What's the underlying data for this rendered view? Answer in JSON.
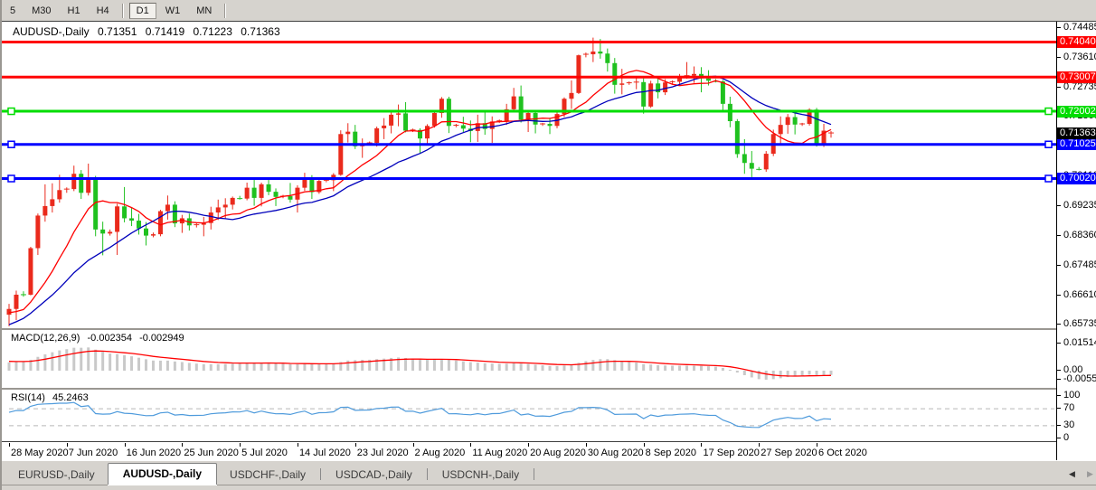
{
  "toolbar": {
    "buttons": [
      {
        "label": "5",
        "active": false
      },
      {
        "label": "M30",
        "active": false
      },
      {
        "label": "H1",
        "active": false
      },
      {
        "label": "H4",
        "active": false
      },
      {
        "label": "D1",
        "active": true
      },
      {
        "label": "W1",
        "active": false
      },
      {
        "label": "MN",
        "active": false
      }
    ]
  },
  "chart": {
    "title": {
      "symbol": "AUDUSD-,Daily",
      "open": "0.71351",
      "high": "0.71419",
      "low": "0.71223",
      "close": "0.71363"
    },
    "price_axis": {
      "ticks": [
        {
          "label": "0.74485",
          "price": 0.74485
        },
        {
          "label": "0.73610",
          "price": 0.7361
        },
        {
          "label": "0.72735",
          "price": 0.72735
        },
        {
          "label": "0.71860",
          "price": 0.7186
        },
        {
          "label": "0.70985",
          "price": 0.70985
        },
        {
          "label": "0.70110",
          "price": 0.7011
        },
        {
          "label": "0.69235",
          "price": 0.69235
        },
        {
          "label": "0.68360",
          "price": 0.6836
        },
        {
          "label": "0.67485",
          "price": 0.67485
        },
        {
          "label": "0.66610",
          "price": 0.6661
        },
        {
          "label": "0.65735",
          "price": 0.65735
        }
      ],
      "badges": [
        {
          "label": "0.74040",
          "price": 0.7404,
          "color": "#ff0000"
        },
        {
          "label": "0.73007",
          "price": 0.73007,
          "color": "#ff0000"
        },
        {
          "label": "0.72002",
          "price": 0.72002,
          "color": "#00dd00"
        },
        {
          "label": "0.71025",
          "price": 0.71025,
          "color": "#0000ff"
        },
        {
          "label": "0.70020",
          "price": 0.7002,
          "color": "#0000ff"
        },
        {
          "label": "0.71363",
          "price": 0.71363,
          "color": "#000000"
        }
      ]
    },
    "hlines": [
      {
        "price": 0.7404,
        "color": "#ff0000",
        "selected": false
      },
      {
        "price": 0.73007,
        "color": "#ff0000",
        "selected": false
      },
      {
        "price": 0.72002,
        "color": "#00dd00",
        "selected": true
      },
      {
        "price": 0.71025,
        "color": "#0000ff",
        "selected": true
      },
      {
        "price": 0.7002,
        "color": "#0000ff",
        "selected": true
      }
    ]
  },
  "chart_data": {
    "type": "candlestick",
    "symbol": "AUDUSD",
    "timeframe": "Daily",
    "bull_color": "#ea2a1c",
    "bear_color": "#1fc11f",
    "moving_averages": [
      {
        "name": "sma-fast",
        "period": 10,
        "color": "#ff0000"
      },
      {
        "name": "sma-slow",
        "period": 20,
        "color": "#0000bb"
      }
    ],
    "warmup_closes": [
      0.613,
      0.6172,
      0.6205,
      0.6241,
      0.627,
      0.6305,
      0.6336,
      0.6301,
      0.6275,
      0.6318,
      0.6357,
      0.6382,
      0.634,
      0.6309,
      0.6355,
      0.6391,
      0.6428,
      0.6464,
      0.6441,
      0.6417,
      0.6452,
      0.6478,
      0.651,
      0.6486,
      0.6458,
      0.6432,
      0.6461,
      0.6489,
      0.6523,
      0.6547,
      0.6518,
      0.6487,
      0.6462,
      0.6498,
      0.6534,
      0.656,
      0.6585,
      0.6557,
      0.6528,
      0.6561,
      0.6594,
      0.6625,
      0.6601,
      0.6575,
      0.6606,
      0.6632,
      0.661,
      0.6588,
      0.6612,
      0.6601
    ],
    "candles": [
      [
        0.6601,
        0.6633,
        0.6567,
        0.6618
      ],
      [
        0.6618,
        0.6672,
        0.6585,
        0.666
      ],
      [
        0.6663,
        0.667,
        0.6654,
        0.666
      ],
      [
        0.666,
        0.6801,
        0.6658,
        0.6797
      ],
      [
        0.6797,
        0.6899,
        0.6777,
        0.6893
      ],
      [
        0.6893,
        0.6985,
        0.6875,
        0.6921
      ],
      [
        0.6921,
        0.6988,
        0.6902,
        0.6941
      ],
      [
        0.6941,
        0.7013,
        0.6931,
        0.6968
      ],
      [
        0.6968,
        0.6976,
        0.696,
        0.6971
      ],
      [
        0.6971,
        0.704,
        0.6965,
        0.7016
      ],
      [
        0.7016,
        0.7027,
        0.6942,
        0.696
      ],
      [
        0.696,
        0.7046,
        0.6952,
        0.6999
      ],
      [
        0.6999,
        0.701,
        0.6832,
        0.6852
      ],
      [
        0.6852,
        0.6875,
        0.6776,
        0.684
      ],
      [
        0.684,
        0.6852,
        0.6834,
        0.6845
      ],
      [
        0.6845,
        0.6928,
        0.6777,
        0.692
      ],
      [
        0.692,
        0.6977,
        0.6873,
        0.6885
      ],
      [
        0.6885,
        0.6916,
        0.6862,
        0.6878
      ],
      [
        0.6878,
        0.6898,
        0.6837,
        0.6855
      ],
      [
        0.6855,
        0.6874,
        0.6805,
        0.6834
      ],
      [
        0.6834,
        0.6843,
        0.6829,
        0.6838
      ],
      [
        0.6838,
        0.691,
        0.6832,
        0.6906
      ],
      [
        0.6906,
        0.6952,
        0.6881,
        0.6925
      ],
      [
        0.6925,
        0.6935,
        0.6859,
        0.687
      ],
      [
        0.687,
        0.6895,
        0.6842,
        0.6885
      ],
      [
        0.6885,
        0.6899,
        0.6849,
        0.6864
      ],
      [
        0.6864,
        0.687,
        0.6858,
        0.6866
      ],
      [
        0.6866,
        0.6889,
        0.6832,
        0.6871
      ],
      [
        0.6871,
        0.6919,
        0.6852,
        0.6902
      ],
      [
        0.6902,
        0.694,
        0.688,
        0.6917
      ],
      [
        0.6917,
        0.6944,
        0.6884,
        0.6925
      ],
      [
        0.6925,
        0.6949,
        0.6911,
        0.6945
      ],
      [
        0.6945,
        0.6951,
        0.694,
        0.6943
      ],
      [
        0.6943,
        0.699,
        0.6938,
        0.6975
      ],
      [
        0.6975,
        0.6998,
        0.6922,
        0.6945
      ],
      [
        0.6945,
        0.699,
        0.692,
        0.6985
      ],
      [
        0.6985,
        0.7001,
        0.6953,
        0.6963
      ],
      [
        0.6963,
        0.6973,
        0.6921,
        0.6948
      ],
      [
        0.6948,
        0.6954,
        0.6944,
        0.695
      ],
      [
        0.695,
        0.6989,
        0.6931,
        0.694
      ],
      [
        0.694,
        0.6982,
        0.6902,
        0.6975
      ],
      [
        0.6975,
        0.7019,
        0.6966,
        0.7005
      ],
      [
        0.7005,
        0.7012,
        0.6942,
        0.6962
      ],
      [
        0.6962,
        0.7002,
        0.6957,
        0.6995
      ],
      [
        0.6995,
        0.7001,
        0.6991,
        0.6997
      ],
      [
        0.6997,
        0.7018,
        0.6965,
        0.7013
      ],
      [
        0.7013,
        0.7144,
        0.701,
        0.7133
      ],
      [
        0.7133,
        0.7165,
        0.7108,
        0.714
      ],
      [
        0.714,
        0.716,
        0.7089,
        0.7097
      ],
      [
        0.7097,
        0.712,
        0.7063,
        0.7105
      ],
      [
        0.7105,
        0.7111,
        0.7101,
        0.7107
      ],
      [
        0.7107,
        0.7155,
        0.7096,
        0.715
      ],
      [
        0.715,
        0.718,
        0.7118,
        0.7158
      ],
      [
        0.7158,
        0.7197,
        0.7135,
        0.719
      ],
      [
        0.719,
        0.722,
        0.7156,
        0.7194
      ],
      [
        0.7194,
        0.7227,
        0.7138,
        0.7143
      ],
      [
        0.7143,
        0.7149,
        0.7139,
        0.7145
      ],
      [
        0.7145,
        0.715,
        0.7076,
        0.712
      ],
      [
        0.712,
        0.7162,
        0.7102,
        0.7157
      ],
      [
        0.7157,
        0.7204,
        0.7152,
        0.7195
      ],
      [
        0.7195,
        0.7242,
        0.7181,
        0.7237
      ],
      [
        0.7237,
        0.7243,
        0.7136,
        0.7157
      ],
      [
        0.7157,
        0.7163,
        0.7153,
        0.7159
      ],
      [
        0.7159,
        0.7184,
        0.7139,
        0.7149
      ],
      [
        0.7149,
        0.7173,
        0.7109,
        0.7142
      ],
      [
        0.7142,
        0.719,
        0.711,
        0.7165
      ],
      [
        0.7165,
        0.7197,
        0.7131,
        0.7148
      ],
      [
        0.7148,
        0.7185,
        0.7107,
        0.717
      ],
      [
        0.717,
        0.7176,
        0.7166,
        0.7172
      ],
      [
        0.7172,
        0.7222,
        0.716,
        0.7206
      ],
      [
        0.7206,
        0.7269,
        0.7202,
        0.7244
      ],
      [
        0.7244,
        0.7276,
        0.7167,
        0.7175
      ],
      [
        0.7175,
        0.7204,
        0.7139,
        0.7195
      ],
      [
        0.7195,
        0.72,
        0.7135,
        0.7161
      ],
      [
        0.7161,
        0.7166,
        0.7157,
        0.7163
      ],
      [
        0.7163,
        0.7181,
        0.7133,
        0.7157
      ],
      [
        0.7157,
        0.7198,
        0.715,
        0.7192
      ],
      [
        0.7192,
        0.7241,
        0.7183,
        0.7237
      ],
      [
        0.7237,
        0.7291,
        0.7207,
        0.7254
      ],
      [
        0.7254,
        0.7367,
        0.7251,
        0.7365
      ],
      [
        0.7365,
        0.7373,
        0.7359,
        0.7368
      ],
      [
        0.7368,
        0.7417,
        0.7345,
        0.7376
      ],
      [
        0.7376,
        0.7413,
        0.7355,
        0.737
      ],
      [
        0.737,
        0.7385,
        0.7317,
        0.7342
      ],
      [
        0.7342,
        0.7357,
        0.7252,
        0.7278
      ],
      [
        0.7278,
        0.7325,
        0.725,
        0.7282
      ],
      [
        0.7282,
        0.7288,
        0.7278,
        0.7284
      ],
      [
        0.7284,
        0.73,
        0.7265,
        0.7286
      ],
      [
        0.7286,
        0.7297,
        0.7193,
        0.7214
      ],
      [
        0.7214,
        0.729,
        0.721,
        0.7282
      ],
      [
        0.7282,
        0.7302,
        0.7238,
        0.7256
      ],
      [
        0.7256,
        0.7295,
        0.7248,
        0.7285
      ],
      [
        0.7285,
        0.7291,
        0.7281,
        0.7287
      ],
      [
        0.7287,
        0.731,
        0.7275,
        0.7302
      ],
      [
        0.7302,
        0.7345,
        0.7296,
        0.7305
      ],
      [
        0.7305,
        0.7332,
        0.7284,
        0.731
      ],
      [
        0.731,
        0.733,
        0.7256,
        0.7297
      ],
      [
        0.7297,
        0.7321,
        0.7276,
        0.729
      ],
      [
        0.729,
        0.7295,
        0.7285,
        0.7288
      ],
      [
        0.7288,
        0.7292,
        0.7198,
        0.7222
      ],
      [
        0.7222,
        0.7243,
        0.7153,
        0.7171
      ],
      [
        0.7171,
        0.7177,
        0.7063,
        0.7074
      ],
      [
        0.7074,
        0.7118,
        0.7016,
        0.7048
      ],
      [
        0.7048,
        0.7083,
        0.7006,
        0.7031
      ],
      [
        0.7031,
        0.7036,
        0.7026,
        0.7029
      ],
      [
        0.7029,
        0.7083,
        0.7022,
        0.7075
      ],
      [
        0.7075,
        0.7146,
        0.7068,
        0.7133
      ],
      [
        0.7133,
        0.7185,
        0.7103,
        0.716
      ],
      [
        0.716,
        0.7192,
        0.7134,
        0.7183
      ],
      [
        0.7183,
        0.7196,
        0.7132,
        0.7161
      ],
      [
        0.7161,
        0.7166,
        0.7157,
        0.7163
      ],
      [
        0.7163,
        0.7209,
        0.7158,
        0.7205
      ],
      [
        0.7205,
        0.721,
        0.7096,
        0.7103
      ],
      [
        0.7103,
        0.7163,
        0.7095,
        0.7143
      ],
      [
        0.71351,
        0.71419,
        0.71223,
        0.71363
      ]
    ]
  },
  "macd": {
    "label": "MACD(12,26,9)",
    "value_main": "-0.002354",
    "value_signal": "-0.002949",
    "axis_labels": [
      "0.015142",
      "0.00",
      "-0.005595"
    ],
    "fast": 12,
    "slow": 26,
    "signal": 9,
    "histogram_color": "#c9c9c9",
    "signal_color": "#ff0000"
  },
  "rsi": {
    "label": "RSI(14)",
    "value": "45.2463",
    "axis_labels": [
      "100",
      "70",
      "30",
      "0"
    ],
    "period": 14,
    "levels": [
      70,
      30
    ],
    "line_color": "#4f9bdc"
  },
  "date_axis": {
    "labels": [
      "28 May 2020",
      "7 Jun 2020",
      "16 Jun 2020",
      "25 Jun 2020",
      "5 Jul 2020",
      "14 Jul 2020",
      "23 Jul 2020",
      "2 Aug 2020",
      "11 Aug 2020",
      "20 Aug 2020",
      "30 Aug 2020",
      "8 Sep 2020",
      "17 Sep 2020",
      "27 Sep 2020",
      "6 Oct 2020"
    ],
    "bar_indices": [
      0,
      8,
      16,
      24,
      32,
      40,
      48,
      56,
      64,
      72,
      80,
      88,
      96,
      104,
      112
    ]
  },
  "tabs": {
    "items": [
      {
        "label": "EURUSD-,Daily",
        "active": false
      },
      {
        "label": "AUDUSD-,Daily",
        "active": true
      },
      {
        "label": "USDCHF-,Daily",
        "active": false
      },
      {
        "label": "USDCAD-,Daily",
        "active": false
      },
      {
        "label": "USDCNH-,Daily",
        "active": false
      }
    ]
  }
}
